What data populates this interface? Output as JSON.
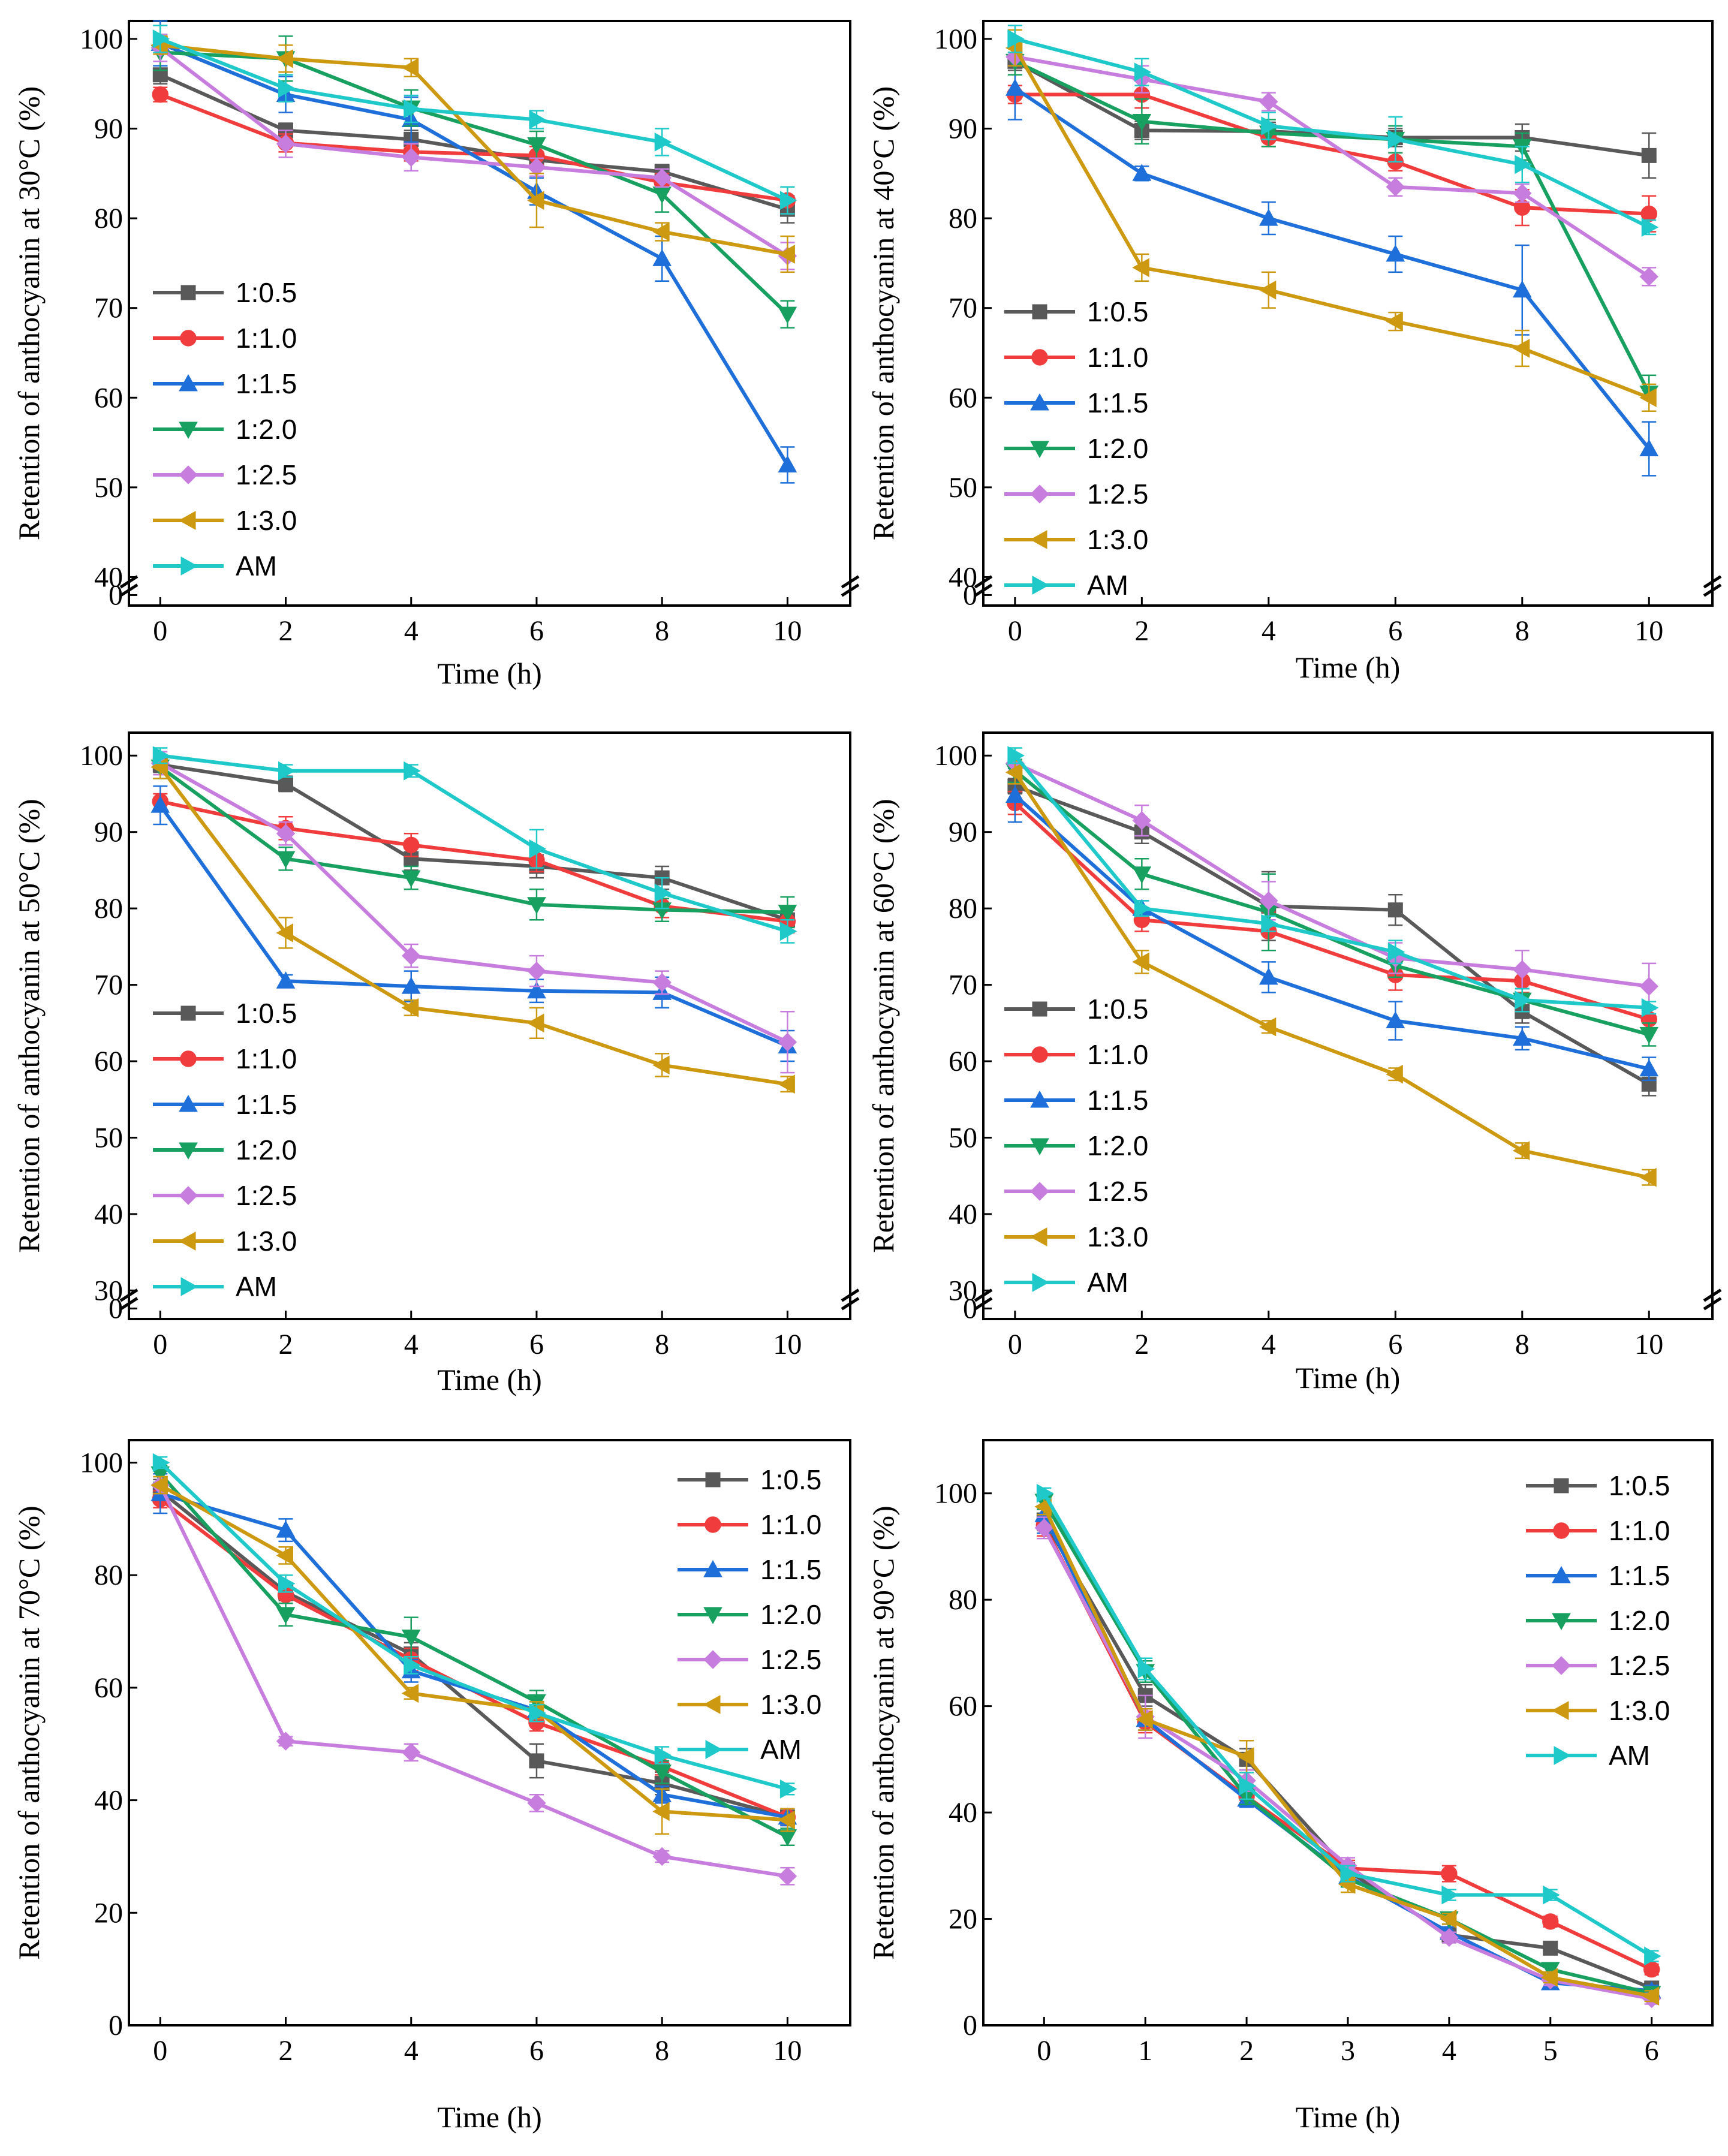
{
  "series_names": [
    "1:0.5",
    "1:1.0",
    "1:1.5",
    "1:2.0",
    "1:2.5",
    "1:3.0",
    "AM"
  ],
  "series_colors": [
    "#595959",
    "#f03c3c",
    "#1e6fd9",
    "#18a060",
    "#c77ddd",
    "#cc9910",
    "#1fc9c9"
  ],
  "series_markers": [
    "square",
    "circle",
    "triangle-up",
    "triangle-down",
    "diamond",
    "triangle-left",
    "triangle-right"
  ],
  "chart_data": [
    {
      "type": "line",
      "title": "",
      "xlabel": "Time (h)",
      "ylabel": "Retention of anthocyanin at 30°C (%)",
      "x": [
        0,
        2,
        4,
        6,
        8,
        10
      ],
      "xticks": [
        "0",
        "2",
        "4",
        "6",
        "8",
        "10"
      ],
      "xlim": [
        -0.5,
        11
      ],
      "yticks": [
        0,
        40,
        50,
        60,
        70,
        80,
        90,
        100
      ],
      "ylim": [
        0,
        102
      ],
      "y_break": [
        0,
        40
      ],
      "legend_position": "bottom-left",
      "series": [
        {
          "name": "1:0.5",
          "values": [
            96.0,
            89.8,
            88.8,
            86.5,
            85.2,
            81.0
          ],
          "errors": [
            1.0,
            0.8,
            1.0,
            0.8,
            0.8,
            1.5
          ]
        },
        {
          "name": "1:1.0",
          "values": [
            93.8,
            88.4,
            87.4,
            87.0,
            84.0,
            82.0
          ],
          "errors": [
            0.8,
            1.0,
            1.0,
            1.0,
            1.0,
            1.5
          ]
        },
        {
          "name": "1:1.5",
          "values": [
            99.5,
            93.8,
            91.0,
            83.0,
            75.5,
            52.5
          ],
          "errors": [
            2.5,
            2.0,
            2.5,
            1.5,
            2.5,
            2.0
          ]
        },
        {
          "name": "1:2.0",
          "values": [
            98.5,
            97.8,
            92.3,
            88.2,
            82.7,
            69.3
          ],
          "errors": [
            2.0,
            2.5,
            2.0,
            1.5,
            2.0,
            1.5
          ]
        },
        {
          "name": "1:2.5",
          "values": [
            99.0,
            88.3,
            86.8,
            85.7,
            84.5,
            75.8
          ],
          "errors": [
            1.5,
            1.5,
            1.5,
            1.0,
            1.0,
            1.5
          ]
        },
        {
          "name": "1:3.0",
          "values": [
            99.3,
            97.8,
            96.8,
            82.0,
            78.5,
            76.0
          ],
          "errors": [
            1.0,
            1.5,
            1.0,
            3.0,
            1.0,
            2.0
          ]
        },
        {
          "name": "AM",
          "values": [
            100.0,
            94.5,
            92.2,
            91.0,
            88.5,
            82.0
          ],
          "errors": [
            1.5,
            1.5,
            1.5,
            1.0,
            1.5,
            1.5
          ]
        }
      ]
    },
    {
      "type": "line",
      "title": "",
      "xlabel": "Time (h)",
      "ylabel": "Retention of anthocyanin at 40°C (%)",
      "x": [
        0,
        2,
        4,
        6,
        8,
        10
      ],
      "xticks": [
        "0",
        "2",
        "4",
        "6",
        "8",
        "10"
      ],
      "xlim": [
        -0.5,
        11
      ],
      "yticks": [
        0,
        40,
        50,
        60,
        70,
        80,
        90,
        100
      ],
      "ylim": [
        0,
        102
      ],
      "y_break": [
        0,
        40
      ],
      "legend_position": "bottom-left",
      "series": [
        {
          "name": "1:0.5",
          "values": [
            97.5,
            89.8,
            89.7,
            89.0,
            89.0,
            87.0
          ],
          "errors": [
            1.0,
            1.0,
            1.0,
            1.0,
            1.5,
            2.5
          ]
        },
        {
          "name": "1:1.0",
          "values": [
            93.8,
            93.8,
            89.0,
            86.3,
            81.2,
            80.5
          ],
          "errors": [
            1.0,
            1.5,
            1.0,
            1.0,
            2.0,
            2.0
          ]
        },
        {
          "name": "1:1.5",
          "values": [
            94.5,
            85.0,
            80.0,
            76.0,
            72.0,
            54.3
          ],
          "errors": [
            3.5,
            0.8,
            1.8,
            2.0,
            5.0,
            3.0
          ]
        },
        {
          "name": "1:2.0",
          "values": [
            97.5,
            90.8,
            89.5,
            88.8,
            88.0,
            60.5
          ],
          "errors": [
            1.5,
            2.5,
            1.5,
            1.5,
            1.5,
            2.0
          ]
        },
        {
          "name": "1:2.5",
          "values": [
            98.0,
            95.5,
            93.0,
            83.5,
            82.8,
            73.5
          ],
          "errors": [
            1.0,
            1.5,
            1.0,
            1.0,
            1.0,
            1.0
          ]
        },
        {
          "name": "1:3.0",
          "values": [
            99.0,
            74.5,
            72.0,
            68.5,
            65.5,
            60.0
          ],
          "errors": [
            2.0,
            1.5,
            2.0,
            1.0,
            2.0,
            1.5
          ]
        },
        {
          "name": "AM",
          "values": [
            100.0,
            96.3,
            90.3,
            88.8,
            86.0,
            79.0
          ],
          "errors": [
            1.5,
            1.5,
            1.5,
            2.5,
            2.0,
            0.8
          ]
        }
      ]
    },
    {
      "type": "line",
      "title": "",
      "xlabel": "Time (h)",
      "ylabel": "Retention of anthocyanin at 50°C (%)",
      "x": [
        0,
        2,
        4,
        6,
        8,
        10
      ],
      "xticks": [
        "0",
        "2",
        "4",
        "6",
        "8",
        "10"
      ],
      "xlim": [
        -0.5,
        11
      ],
      "yticks": [
        0,
        30,
        40,
        50,
        60,
        70,
        80,
        90,
        100
      ],
      "ylim": [
        0,
        103
      ],
      "y_break": [
        0,
        30
      ],
      "legend_position": "bottom-left",
      "series": [
        {
          "name": "1:0.5",
          "values": [
            98.8,
            96.3,
            86.5,
            85.5,
            84.0,
            78.5
          ],
          "errors": [
            1.0,
            1.0,
            1.5,
            1.5,
            1.5,
            1.5
          ]
        },
        {
          "name": "1:1.0",
          "values": [
            94.0,
            90.5,
            88.3,
            86.3,
            80.3,
            78.3
          ],
          "errors": [
            1.0,
            1.5,
            1.5,
            1.5,
            1.5,
            1.5
          ]
        },
        {
          "name": "1:1.5",
          "values": [
            93.5,
            70.5,
            69.8,
            69.2,
            69.0,
            62.0
          ],
          "errors": [
            2.5,
            0.8,
            2.0,
            1.5,
            2.0,
            2.0
          ]
        },
        {
          "name": "1:2.0",
          "values": [
            98.5,
            86.5,
            84.0,
            80.5,
            79.8,
            79.5
          ],
          "errors": [
            1.5,
            1.5,
            1.5,
            2.0,
            1.5,
            2.0
          ]
        },
        {
          "name": "1:2.5",
          "values": [
            99.0,
            89.8,
            73.8,
            71.8,
            70.3,
            62.5
          ],
          "errors": [
            1.5,
            1.5,
            1.5,
            2.0,
            1.5,
            4.0
          ]
        },
        {
          "name": "1:3.0",
          "values": [
            98.5,
            76.8,
            67.0,
            65.0,
            59.5,
            57.0
          ],
          "errors": [
            1.5,
            2.0,
            1.0,
            2.0,
            1.5,
            1.0
          ]
        },
        {
          "name": "AM",
          "values": [
            100.0,
            98.0,
            98.0,
            87.8,
            82.0,
            77.0
          ],
          "errors": [
            1.0,
            0.8,
            0.8,
            2.5,
            2.0,
            1.5
          ]
        }
      ]
    },
    {
      "type": "line",
      "title": "",
      "xlabel": "Time (h)",
      "ylabel": "Retention of anthocyanin at 60°C (%)",
      "x": [
        0,
        2,
        4,
        6,
        8,
        10
      ],
      "xticks": [
        "0",
        "2",
        "4",
        "6",
        "8",
        "10"
      ],
      "xlim": [
        -0.5,
        11
      ],
      "yticks": [
        0,
        30,
        40,
        50,
        60,
        70,
        80,
        90,
        100
      ],
      "ylim": [
        0,
        103
      ],
      "y_break": [
        0,
        30
      ],
      "legend_position": "bottom-left",
      "series": [
        {
          "name": "1:0.5",
          "values": [
            96.0,
            90.0,
            80.3,
            79.8,
            66.5,
            57.0
          ],
          "errors": [
            1.0,
            1.5,
            4.5,
            2.0,
            1.5,
            1.5
          ]
        },
        {
          "name": "1:1.0",
          "values": [
            93.8,
            78.5,
            77.0,
            71.3,
            70.5,
            65.5
          ],
          "errors": [
            1.5,
            1.5,
            2.5,
            2.0,
            1.5,
            1.5
          ]
        },
        {
          "name": "1:1.5",
          "values": [
            94.8,
            80.0,
            71.0,
            65.3,
            63.0,
            59.0
          ],
          "errors": [
            3.5,
            1.0,
            2.0,
            2.5,
            1.5,
            1.5
          ]
        },
        {
          "name": "1:2.0",
          "values": [
            98.0,
            84.5,
            79.5,
            72.5,
            68.0,
            63.5
          ],
          "errors": [
            1.5,
            2.0,
            5.0,
            1.5,
            1.5,
            1.5
          ]
        },
        {
          "name": "1:2.5",
          "values": [
            99.0,
            91.5,
            81.0,
            73.5,
            72.0,
            69.8
          ],
          "errors": [
            1.0,
            2.0,
            2.5,
            2.0,
            2.5,
            3.0
          ]
        },
        {
          "name": "1:3.0",
          "values": [
            97.8,
            73.0,
            64.5,
            58.3,
            48.3,
            44.8
          ],
          "errors": [
            1.5,
            1.5,
            0.8,
            0.8,
            1.0,
            1.0
          ]
        },
        {
          "name": "AM",
          "values": [
            100.0,
            80.0,
            78.0,
            74.3,
            68.0,
            67.0
          ],
          "errors": [
            1.0,
            1.0,
            1.0,
            1.5,
            1.5,
            0.8
          ]
        }
      ]
    },
    {
      "type": "line",
      "title": "",
      "xlabel": "Time (h)",
      "ylabel": "Retention of anthocyanin at 70°C (%)",
      "x": [
        0,
        2,
        4,
        6,
        8,
        10
      ],
      "xticks": [
        "0",
        "2",
        "4",
        "6",
        "8",
        "10"
      ],
      "xlim": [
        -0.5,
        11
      ],
      "yticks": [
        0,
        20,
        40,
        60,
        80,
        100
      ],
      "ylim": [
        0,
        104
      ],
      "legend_position": "top-right",
      "series": [
        {
          "name": "1:0.5",
          "values": [
            95.0,
            77.0,
            66.0,
            47.0,
            43.0,
            37.0
          ],
          "errors": [
            2.0,
            1.5,
            2.0,
            3.0,
            2.0,
            1.5
          ]
        },
        {
          "name": "1:1.0",
          "values": [
            93.5,
            76.5,
            65.0,
            53.8,
            46.0,
            37.0
          ],
          "errors": [
            1.5,
            1.5,
            2.0,
            1.5,
            1.5,
            1.5
          ]
        },
        {
          "name": "1:1.5",
          "values": [
            94.5,
            88.0,
            63.0,
            56.0,
            41.0,
            37.0
          ],
          "errors": [
            3.5,
            2.0,
            2.0,
            1.5,
            1.5,
            1.5
          ]
        },
        {
          "name": "1:2.0",
          "values": [
            98.0,
            73.0,
            69.0,
            57.5,
            45.0,
            33.5
          ],
          "errors": [
            1.5,
            2.0,
            3.5,
            2.0,
            2.0,
            1.5
          ]
        },
        {
          "name": "1:2.5",
          "values": [
            96.0,
            50.5,
            48.5,
            39.5,
            30.0,
            26.5
          ],
          "errors": [
            1.5,
            0.8,
            1.5,
            1.5,
            1.0,
            1.5
          ]
        },
        {
          "name": "1:3.0",
          "values": [
            96.0,
            83.5,
            59.0,
            56.0,
            38.0,
            36.5
          ],
          "errors": [
            1.5,
            1.5,
            1.0,
            1.5,
            4.0,
            2.0
          ]
        },
        {
          "name": "AM",
          "values": [
            100.0,
            78.5,
            64.0,
            55.5,
            48.0,
            42.0
          ],
          "errors": [
            1.0,
            1.5,
            1.5,
            1.5,
            1.5,
            1.0
          ]
        }
      ]
    },
    {
      "type": "line",
      "title": "",
      "xlabel": "Time (h)",
      "ylabel": "Retention of anthocyanin at 90°C (%)",
      "x": [
        0,
        1,
        2,
        3,
        4,
        5,
        6
      ],
      "xticks": [
        "0",
        "1",
        "2",
        "3",
        "4",
        "5",
        "6"
      ],
      "xlim": [
        -0.6,
        6.6
      ],
      "yticks": [
        0,
        20,
        40,
        60,
        80,
        100
      ],
      "ylim": [
        0,
        110
      ],
      "legend_position": "top-right",
      "series": [
        {
          "name": "1:0.5",
          "values": [
            95.0,
            62.0,
            50.0,
            29.0,
            17.0,
            14.5,
            7.0
          ],
          "errors": [
            2.0,
            2.0,
            2.0,
            1.5,
            1.0,
            1.0,
            1.0
          ]
        },
        {
          "name": "1:1.0",
          "values": [
            94.0,
            57.0,
            43.0,
            29.5,
            28.5,
            19.5,
            10.5
          ],
          "errors": [
            2.0,
            2.0,
            1.5,
            1.5,
            1.5,
            1.0,
            1.0
          ]
        },
        {
          "name": "1:1.5",
          "values": [
            96.0,
            57.5,
            42.5,
            28.0,
            17.5,
            8.0,
            6.5
          ],
          "errors": [
            3.5,
            2.0,
            1.5,
            1.5,
            1.0,
            1.0,
            1.0
          ]
        },
        {
          "name": "1:2.0",
          "values": [
            98.5,
            66.5,
            43.0,
            27.5,
            20.0,
            10.5,
            6.0
          ],
          "errors": [
            1.5,
            2.0,
            1.5,
            1.5,
            1.0,
            1.0,
            1.0
          ]
        },
        {
          "name": "1:2.5",
          "values": [
            93.5,
            58.0,
            46.0,
            30.0,
            16.5,
            8.5,
            5.0
          ],
          "errors": [
            2.0,
            4.0,
            2.0,
            1.5,
            1.0,
            1.0,
            1.0
          ]
        },
        {
          "name": "1:3.0",
          "values": [
            97.5,
            57.5,
            50.5,
            26.5,
            20.0,
            9.0,
            5.5
          ],
          "errors": [
            1.5,
            2.0,
            3.0,
            1.5,
            1.0,
            1.0,
            1.0
          ]
        },
        {
          "name": "AM",
          "values": [
            100.0,
            67.0,
            45.0,
            28.5,
            24.5,
            24.5,
            13.0
          ],
          "errors": [
            1.0,
            2.0,
            2.5,
            1.5,
            1.0,
            1.0,
            1.0
          ]
        }
      ]
    }
  ]
}
